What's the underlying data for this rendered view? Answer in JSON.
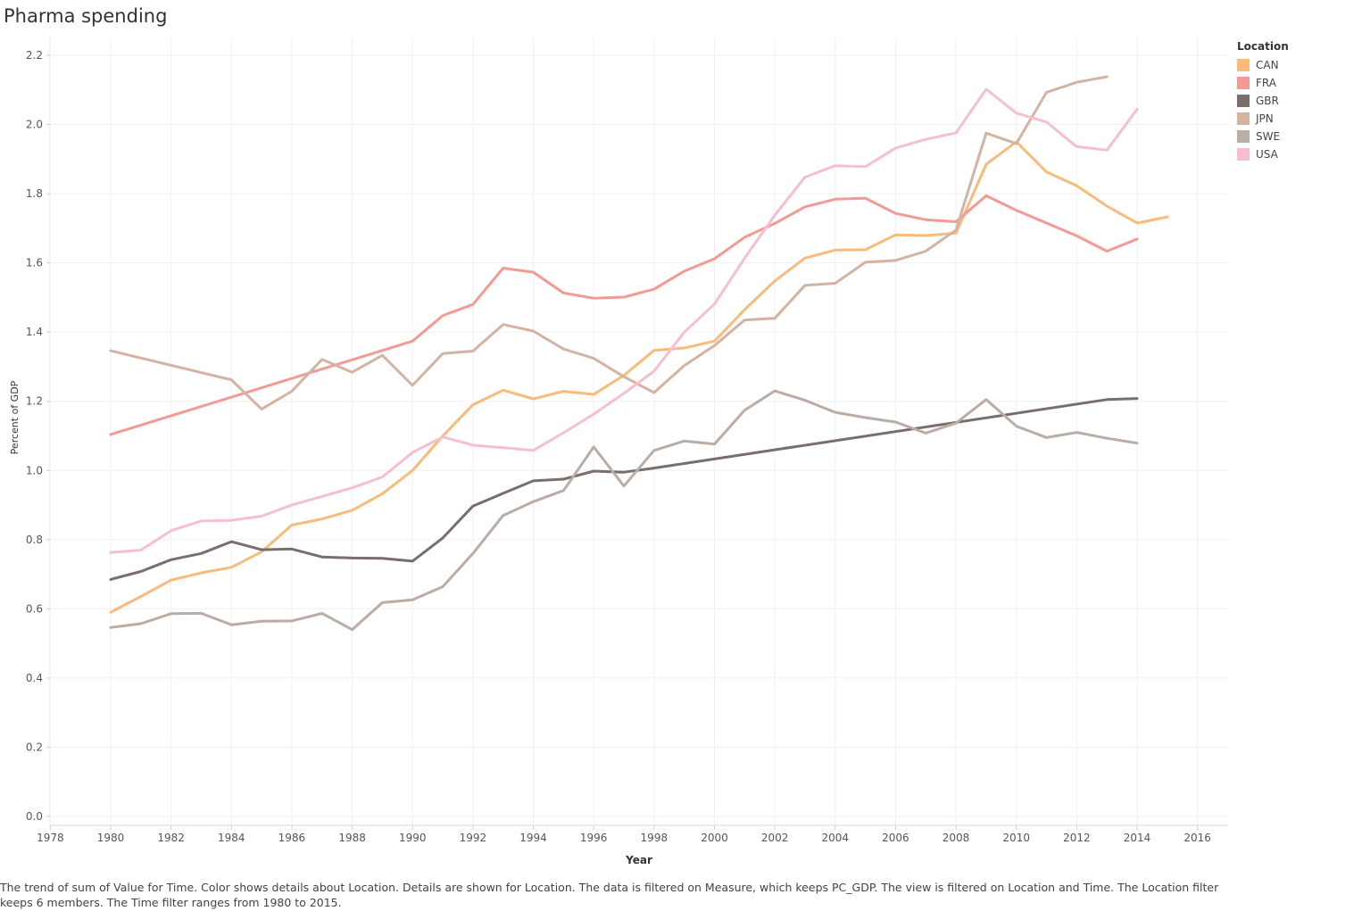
{
  "title": "Pharma spending",
  "caption": "The trend of sum of Value for Time.  Color shows details about Location.  Details are shown for Location. The data is filtered on Measure, which keeps PC_GDP. The view is filtered on Location and Time. The Location filter keeps 6 members. The Time filter ranges from 1980 to 2015.",
  "legend": {
    "title": "Location",
    "items": [
      {
        "label": "CAN",
        "color": "#F9BB7B"
      },
      {
        "label": "FRA",
        "color": "#F49A94"
      },
      {
        "label": "GBR",
        "color": "#796E6C"
      },
      {
        "label": "JPN",
        "color": "#D4B3A3"
      },
      {
        "label": "SWE",
        "color": "#B9ADA6"
      },
      {
        "label": "USA",
        "color": "#F6BFD1"
      }
    ]
  },
  "chart_data": {
    "type": "line",
    "title": "Pharma spending",
    "xlabel": "Year",
    "ylabel": "Percent of GDP",
    "xlim": [
      1977,
      2017
    ],
    "ylim": [
      0,
      2.2
    ],
    "xticks": [
      1978,
      1980,
      1982,
      1984,
      1986,
      1988,
      1990,
      1992,
      1994,
      1996,
      1998,
      2000,
      2002,
      2004,
      2006,
      2008,
      2010,
      2012,
      2014,
      2016
    ],
    "yticks": [
      0.0,
      0.2,
      0.4,
      0.6,
      0.8,
      1.0,
      1.2,
      1.4,
      1.6,
      1.8,
      2.0,
      2.2
    ],
    "grid": true,
    "legend_position": "top-right",
    "series": [
      {
        "name": "CAN",
        "color": "#F9BB7B",
        "x": [
          1980,
          1981,
          1982,
          1983,
          1984,
          1985,
          1986,
          1987,
          1988,
          1989,
          1990,
          1991,
          1992,
          1993,
          1994,
          1995,
          1996,
          1997,
          1998,
          1999,
          2000,
          2001,
          2002,
          2003,
          2004,
          2005,
          2006,
          2007,
          2008,
          2009,
          2010,
          2011,
          2012,
          2013,
          2014,
          2015
        ],
        "y": [
          0.59,
          0.636,
          0.683,
          0.704,
          0.72,
          0.765,
          0.842,
          0.86,
          0.885,
          0.933,
          1.0,
          1.1,
          1.19,
          1.232,
          1.207,
          1.229,
          1.22,
          1.275,
          1.347,
          1.354,
          1.374,
          1.465,
          1.548,
          1.614,
          1.637,
          1.638,
          1.681,
          1.679,
          1.686,
          1.885,
          1.95,
          1.863,
          1.823,
          1.764,
          1.715,
          1.733
        ]
      },
      {
        "name": "FRA",
        "color": "#F49A94",
        "x": [
          1980,
          1990,
          1991,
          1992,
          1993,
          1994,
          1995,
          1996,
          1997,
          1998,
          1999,
          2000,
          2001,
          2002,
          2003,
          2004,
          2005,
          2006,
          2007,
          2008,
          2009,
          2010,
          2011,
          2012,
          2013,
          2014
        ],
        "y": [
          1.104,
          1.374,
          1.448,
          1.48,
          1.585,
          1.573,
          1.513,
          1.498,
          1.501,
          1.524,
          1.576,
          1.612,
          1.674,
          1.714,
          1.762,
          1.784,
          1.787,
          1.743,
          1.725,
          1.719,
          1.794,
          1.752,
          1.715,
          1.678,
          1.634,
          1.669
        ]
      },
      {
        "name": "GBR",
        "color": "#796E6C",
        "x": [
          1980,
          1981,
          1982,
          1983,
          1984,
          1985,
          1986,
          1987,
          1988,
          1989,
          1990,
          1991,
          1992,
          1993,
          1994,
          1995,
          1996,
          1997,
          1998,
          2013,
          2014
        ],
        "y": [
          0.685,
          0.708,
          0.742,
          0.76,
          0.794,
          0.771,
          0.773,
          0.75,
          0.747,
          0.746,
          0.738,
          0.805,
          0.897,
          0.934,
          0.97,
          0.975,
          0.998,
          0.995,
          1.007,
          1.205,
          1.208
        ]
      },
      {
        "name": "JPN",
        "color": "#D4B3A3",
        "x": [
          1980,
          1984,
          1985,
          1986,
          1987,
          1988,
          1989,
          1990,
          1991,
          1992,
          1993,
          1994,
          1995,
          1996,
          1997,
          1998,
          1999,
          2000,
          2001,
          2002,
          2003,
          2004,
          2005,
          2006,
          2007,
          2008,
          2009,
          2010,
          2011,
          2012,
          2013
        ],
        "y": [
          1.346,
          1.262,
          1.177,
          1.229,
          1.321,
          1.284,
          1.333,
          1.246,
          1.338,
          1.345,
          1.422,
          1.403,
          1.351,
          1.324,
          1.271,
          1.225,
          1.303,
          1.361,
          1.435,
          1.44,
          1.535,
          1.541,
          1.602,
          1.607,
          1.634,
          1.695,
          1.975,
          1.945,
          2.093,
          2.122,
          2.138
        ]
      },
      {
        "name": "SWE",
        "color": "#B9ADA6",
        "x": [
          1980,
          1981,
          1982,
          1983,
          1984,
          1985,
          1986,
          1987,
          1988,
          1989,
          1990,
          1991,
          1992,
          1993,
          1994,
          1995,
          1996,
          1997,
          1998,
          1999,
          2000,
          2001,
          2002,
          2003,
          2004,
          2005,
          2006,
          2007,
          2008,
          2009,
          2010,
          2011,
          2012,
          2013,
          2014
        ],
        "y": [
          0.546,
          0.557,
          0.586,
          0.587,
          0.554,
          0.564,
          0.565,
          0.587,
          0.54,
          0.618,
          0.626,
          0.664,
          0.76,
          0.87,
          0.91,
          0.942,
          1.068,
          0.955,
          1.058,
          1.085,
          1.076,
          1.174,
          1.23,
          1.203,
          1.168,
          1.153,
          1.14,
          1.108,
          1.137,
          1.205,
          1.128,
          1.095,
          1.11,
          1.093,
          1.079
        ]
      },
      {
        "name": "USA",
        "color": "#F6BFD1",
        "x": [
          1980,
          1981,
          1982,
          1983,
          1984,
          1985,
          1986,
          1987,
          1988,
          1989,
          1990,
          1991,
          1992,
          1993,
          1994,
          1995,
          1996,
          1997,
          1998,
          1999,
          2000,
          2001,
          2002,
          2003,
          2004,
          2005,
          2006,
          2007,
          2008,
          2009,
          2010,
          2011,
          2012,
          2013,
          2014
        ],
        "y": [
          0.763,
          0.77,
          0.826,
          0.854,
          0.856,
          0.868,
          0.9,
          0.925,
          0.95,
          0.981,
          1.052,
          1.097,
          1.073,
          1.066,
          1.058,
          1.109,
          1.163,
          1.223,
          1.287,
          1.4,
          1.481,
          1.614,
          1.738,
          1.848,
          1.881,
          1.878,
          1.932,
          1.957,
          1.976,
          2.102,
          2.033,
          2.007,
          1.936,
          1.926,
          2.044
        ]
      }
    ]
  }
}
